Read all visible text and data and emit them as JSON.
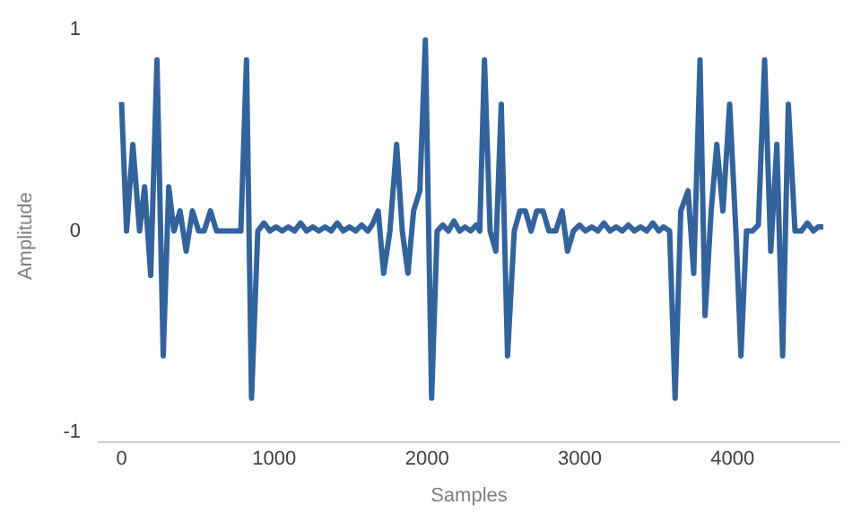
{
  "chart_data": {
    "type": "line",
    "xlabel": "Samples",
    "ylabel": "Amplitude",
    "x": [
      0,
      33,
      74,
      118,
      151,
      191,
      232,
      273,
      309,
      343,
      383,
      423,
      464,
      505,
      541,
      582,
      622,
      781,
      818,
      851,
      892,
      932,
      972,
      1012,
      1052,
      1092,
      1132,
      1172,
      1212,
      1252,
      1292,
      1332,
      1372,
      1412,
      1452,
      1492,
      1532,
      1572,
      1612,
      1640,
      1680,
      1716,
      1757,
      1801,
      1838,
      1875,
      1912,
      1953,
      1989,
      2030,
      2066,
      2103,
      2140,
      2176,
      2213,
      2249,
      2286,
      2322,
      2345,
      2376,
      2413,
      2450,
      2486,
      2527,
      2571,
      2608,
      2644,
      2681,
      2718,
      2759,
      2798,
      2843,
      2884,
      2920,
      2958,
      2998,
      3038,
      3078,
      3118,
      3158,
      3198,
      3238,
      3278,
      3318,
      3358,
      3398,
      3438,
      3478,
      3518,
      3548,
      3588,
      3624,
      3661,
      3709,
      3746,
      3787,
      3820,
      3860,
      3897,
      3937,
      3981,
      4022,
      4055,
      4091,
      4130,
      4169,
      4210,
      4250,
      4290,
      4328,
      4365,
      4409,
      4450,
      4490,
      4530,
      4560,
      4594
    ],
    "series": [
      {
        "color": "#33639c",
        "values": [
          0.64,
          0,
          0.43,
          0,
          0.22,
          -0.22,
          0.85,
          -0.62,
          0.22,
          0,
          0.1,
          -0.1,
          0.1,
          0,
          0,
          0.1,
          0,
          0,
          0.85,
          -0.83,
          0,
          0.04,
          0,
          0.02,
          0,
          0.02,
          0,
          0.04,
          0,
          0.02,
          0,
          0.02,
          0,
          0.04,
          0,
          0.02,
          0,
          0.03,
          0,
          0.03,
          0.1,
          -0.21,
          0,
          0.43,
          0,
          -0.21,
          0.1,
          0.2,
          0.95,
          -0.83,
          0,
          0.03,
          0,
          0.05,
          0,
          0.02,
          0,
          0.03,
          0,
          0.85,
          0,
          -0.1,
          0.63,
          -0.62,
          0,
          0.1,
          0.1,
          0,
          0.1,
          0.1,
          0,
          0,
          0.1,
          -0.1,
          0,
          0.03,
          0,
          0.02,
          0,
          0.04,
          0,
          0.02,
          0,
          0.03,
          0,
          0.02,
          0,
          0.04,
          0,
          0.02,
          0,
          -0.83,
          0.1,
          0.2,
          -0.21,
          0.85,
          -0.42,
          0.1,
          0.43,
          0.1,
          0.63,
          0,
          -0.62,
          0,
          0,
          0.03,
          0.85,
          -0.1,
          0.43,
          -0.62,
          0.63,
          0,
          0,
          0.04,
          0,
          0.02,
          0.02
        ]
      }
    ],
    "xlim": [
      -150,
      4700
    ],
    "xticks": [
      0,
      1000,
      2000,
      3000,
      4000
    ],
    "ylim": [
      -1.05,
      1
    ],
    "yticks": [
      -1,
      0,
      1
    ],
    "grid": false,
    "legend": false,
    "marker": "none",
    "line_style": "solid"
  }
}
